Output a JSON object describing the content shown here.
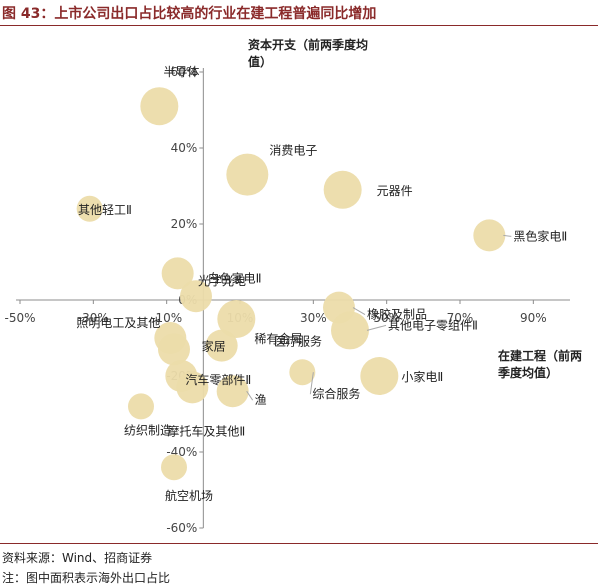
{
  "header": {
    "title": "图 43：上市公司出口占比较高的行业在建工程普遍同比增加"
  },
  "footer": {
    "source": "资料来源：Wind、招商证券",
    "note": "注：图中面积表示海外出口占比"
  },
  "colors": {
    "bubble": "#ecdcaa",
    "axis": "#8c8c8c",
    "title": "#8a2a2a",
    "leader": "#a9a9a9"
  },
  "chart_data": {
    "type": "scatter",
    "xlabel": "在建工程（前两季度均值）",
    "ylabel": "资本开支（前两季度均值）",
    "xlim": [
      -50,
      100
    ],
    "ylim": [
      -60,
      60
    ],
    "x_ticks": [
      "-50%",
      "-30%",
      "-10%",
      "10%",
      "30%",
      "50%",
      "70%",
      "90%"
    ],
    "y_ticks": [
      "60%",
      "40%",
      "20%",
      "0%",
      "-20%",
      "-40%",
      "-60%"
    ],
    "grid": false,
    "points": [
      {
        "name": "半导体",
        "x": -12,
        "y": 51,
        "size": "large"
      },
      {
        "name": "消费电子",
        "x": 12,
        "y": 33,
        "size": "xlarge"
      },
      {
        "name": "元器件",
        "x": 38,
        "y": 29,
        "size": "large"
      },
      {
        "name": "其他轻工Ⅱ",
        "x": -31,
        "y": 24,
        "size": "small"
      },
      {
        "name": "黑色家电Ⅱ",
        "x": 78,
        "y": 17,
        "size": "medium"
      },
      {
        "name": "白色家电Ⅱ",
        "x": -7,
        "y": 7,
        "size": "medium"
      },
      {
        "name": "光学光电",
        "x": -2,
        "y": 1,
        "size": "medium"
      },
      {
        "name": "稀有金属",
        "x": 9,
        "y": -5,
        "size": "large"
      },
      {
        "name": "橡胶及制品",
        "x": 37,
        "y": -2,
        "size": "medium"
      },
      {
        "name": "其他电子零组件Ⅱ",
        "x": 40,
        "y": -8,
        "size": "large"
      },
      {
        "name": "照明电工及其他",
        "x": -9,
        "y": -10,
        "size": "medium"
      },
      {
        "name": "家居",
        "x": 5,
        "y": -12,
        "size": "medium"
      },
      {
        "name": "医疗服务",
        "x": -8,
        "y": -13,
        "size": "medium"
      },
      {
        "name": "汽车零部件Ⅱ",
        "x": -6,
        "y": -20,
        "size": "medium"
      },
      {
        "name": "渔",
        "x": 8,
        "y": -24,
        "size": "medium"
      },
      {
        "name": "综合服务",
        "x": 27,
        "y": -19,
        "size": "small"
      },
      {
        "name": "小家电Ⅱ",
        "x": 48,
        "y": -20,
        "size": "large"
      },
      {
        "name": "纺织制造",
        "x": -17,
        "y": -28,
        "size": "small"
      },
      {
        "name": "摩托车及其他Ⅱ",
        "x": -3,
        "y": -23,
        "size": "medium"
      },
      {
        "name": "航空机场",
        "x": -8,
        "y": -44,
        "size": "small"
      }
    ]
  }
}
